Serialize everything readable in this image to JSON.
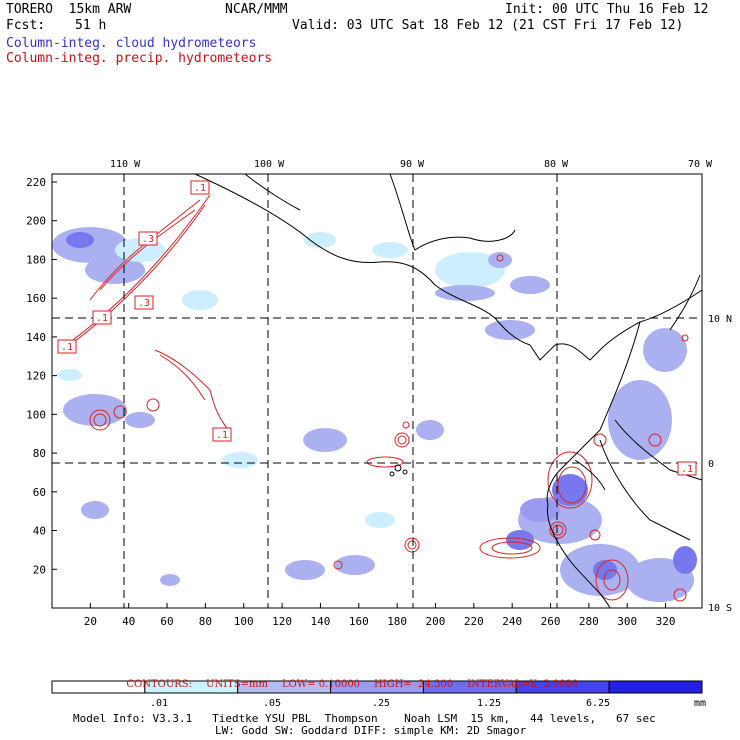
{
  "header": {
    "model": "TORERO  15km ARW",
    "org": "NCAR/MMM",
    "init": "Init: 00 UTC Thu 16 Feb 12",
    "fcst_label": "Fcst:",
    "fcst_value": "51 h",
    "valid": "Valid: 03 UTC Sat 18 Feb 12 (21 CST Fri 17 Feb 12)",
    "field1": "Column-integ. cloud hydrometeors",
    "field2": "Column-integ. precip. hydrometeors"
  },
  "map": {
    "lon_labels": [
      "110 W",
      "100 W",
      "90 W",
      "80 W",
      "70 W"
    ],
    "lat_labels_right": [
      "10 N",
      "0",
      "10 S"
    ],
    "y_ticks": [
      "220",
      "200",
      "180",
      "160",
      "140",
      "120",
      "100",
      "80",
      "60",
      "40",
      "20"
    ],
    "x_ticks": [
      "20",
      "40",
      "60",
      "80",
      "100",
      "120",
      "140",
      "160",
      "180",
      "200",
      "220",
      "240",
      "260",
      "280",
      "300",
      "320"
    ],
    "contour_boxes": [
      ".1",
      ".3",
      ".3",
      ".1",
      ".1",
      ".1",
      ".1"
    ],
    "colors": {
      "cloud_light": "#cceeff",
      "cloud_mid": "#aab0f0",
      "cloud_dark": "#7777ee",
      "precip": "#dd2222",
      "coast": "#000000"
    }
  },
  "contours_info": {
    "label": "CONTOURS:",
    "units": "UNITS=mm",
    "low": "LOW= 0.10000",
    "high": "HIGH=  24.300",
    "interval": "INTERVAL=X  3.0000"
  },
  "colorbar": {
    "labels": [
      ".01",
      ".05",
      ".25",
      "1.25",
      "6.25"
    ],
    "unit": "mm",
    "colors": [
      "#ffffff",
      "#ccf4ff",
      "#b4bcf4",
      "#9a9af0",
      "#6e6eee",
      "#4444ee",
      "#2222e6"
    ]
  },
  "footer": {
    "line1": "Model Info: V3.3.1   Tiedtke YSU PBL  Thompson    Noah LSM  15 km,   44 levels,   67 sec",
    "line2": "LW: Godd SW: Goddard DIFF: simple KM: 2D Smagor"
  }
}
